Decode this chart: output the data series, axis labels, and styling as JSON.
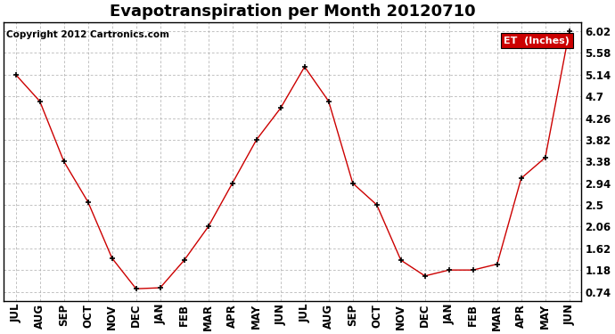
{
  "title": "Evapotranspiration per Month 20120710",
  "copyright": "Copyright 2012 Cartronics.com",
  "legend_label": "ET  (Inches)",
  "legend_bg": "#cc0000",
  "legend_text_color": "#ffffff",
  "months": [
    "JUL",
    "AUG",
    "SEP",
    "OCT",
    "NOV",
    "DEC",
    "JAN",
    "FEB",
    "MAR",
    "APR",
    "MAY",
    "JUN",
    "JUL",
    "AUG",
    "SEP",
    "OCT",
    "NOV",
    "DEC",
    "JAN",
    "FEB",
    "MAR",
    "APR",
    "MAY",
    "JUN"
  ],
  "values": [
    5.14,
    4.6,
    3.38,
    2.56,
    1.42,
    0.8,
    0.82,
    1.38,
    2.06,
    2.94,
    3.82,
    4.46,
    5.3,
    4.6,
    2.94,
    2.5,
    1.38,
    1.06,
    1.18,
    1.18,
    1.3,
    3.04,
    3.46,
    6.02
  ],
  "line_color": "#cc0000",
  "marker_color": "#000000",
  "bg_color": "#ffffff",
  "grid_color": "#aaaaaa",
  "yticks": [
    0.74,
    1.18,
    1.62,
    2.06,
    2.5,
    2.94,
    3.38,
    3.82,
    4.26,
    4.7,
    5.14,
    5.58,
    6.02
  ],
  "ylim": [
    0.55,
    6.2
  ],
  "title_fontsize": 13,
  "axis_fontsize": 8.5,
  "copyright_fontsize": 7.5
}
